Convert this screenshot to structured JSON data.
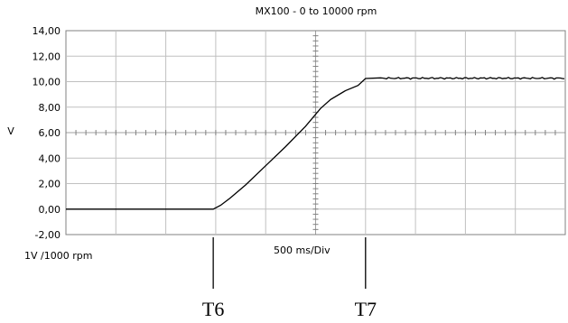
{
  "chart_data": {
    "type": "line",
    "title": "MX100 - 0 to 10000 rpm",
    "ylabel": "V",
    "ylim": [
      -2,
      14
    ],
    "yticks": [
      "14,00",
      "12,00",
      "10,00",
      "8,00",
      "6,00",
      "4,00",
      "2,00",
      "0,00",
      "-2,00"
    ],
    "ytick_values": [
      14,
      12,
      10,
      8,
      6,
      4,
      2,
      0,
      -2
    ],
    "x_divisions": 10,
    "y_divisions": 8,
    "grid": true,
    "bottom_left_label": "1V /1000 rpm",
    "bottom_center_label": "500 ms/Div",
    "x_unit": "div",
    "xlim": [
      0,
      10
    ],
    "series": [
      {
        "values_x": [
          0,
          1,
          2,
          2.95,
          3.1,
          3.3,
          3.6,
          4.0,
          4.4,
          4.8,
          5.1,
          5.3,
          5.6,
          5.85,
          6.0,
          6.3,
          7.0,
          8.0,
          9.0,
          10.0
        ],
        "values_y": [
          0,
          0,
          0,
          0,
          0.3,
          0.9,
          1.9,
          3.4,
          4.9,
          6.5,
          7.9,
          8.6,
          9.3,
          9.7,
          10.25,
          10.3,
          10.3,
          10.25,
          10.3,
          10.2
        ]
      }
    ],
    "annotations": [
      {
        "label": "T6",
        "x": 2.95
      },
      {
        "label": "T7",
        "x": 6.0
      }
    ]
  }
}
